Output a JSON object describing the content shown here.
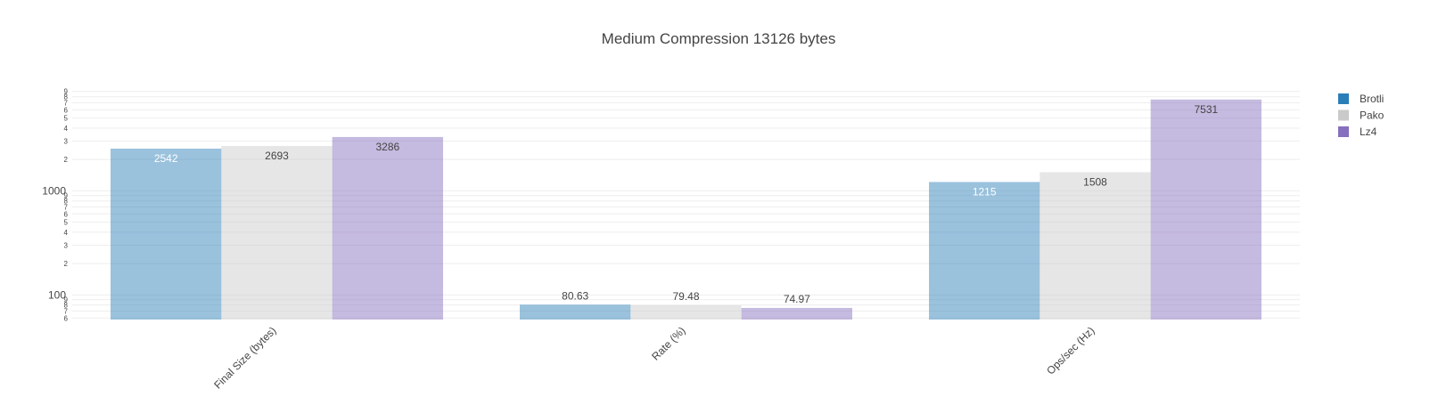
{
  "chart_data": {
    "type": "bar",
    "title": "Medium Compression 13126 bytes",
    "xlabel": "",
    "ylabel": "",
    "yscale": "log",
    "ylim": [
      58,
      9500
    ],
    "yticks_major": [
      {
        "value": 100,
        "label": "100"
      },
      {
        "value": 1000,
        "label": "1000"
      }
    ],
    "yticks_minor_digits": [
      "2",
      "3",
      "4",
      "5",
      "6",
      "7",
      "8",
      "9"
    ],
    "yticks_minor_low": [
      "6",
      "7",
      "8",
      "9"
    ],
    "categories": [
      "Final Size (bytes)",
      "Rate (%)",
      "Ops/sec (Hz)"
    ],
    "series": [
      {
        "name": "Brotli",
        "color": "#1f77b4",
        "values": [
          2542,
          80.63,
          1215
        ],
        "labels": [
          "2542",
          "80.63",
          "1215"
        ],
        "label_color": "#ffffff"
      },
      {
        "name": "Pako",
        "color": "#c7c7c7",
        "values": [
          2693,
          79.48,
          1508
        ],
        "labels": [
          "2693",
          "79.48",
          "1508"
        ],
        "label_color": "#444444"
      },
      {
        "name": "Lz4",
        "color": "#7f67b9",
        "values": [
          3286,
          74.97,
          7531
        ],
        "labels": [
          "3286",
          "74.97",
          "7531"
        ],
        "label_color": "#444444"
      }
    ],
    "grid": true,
    "legend_position": "top-right"
  }
}
